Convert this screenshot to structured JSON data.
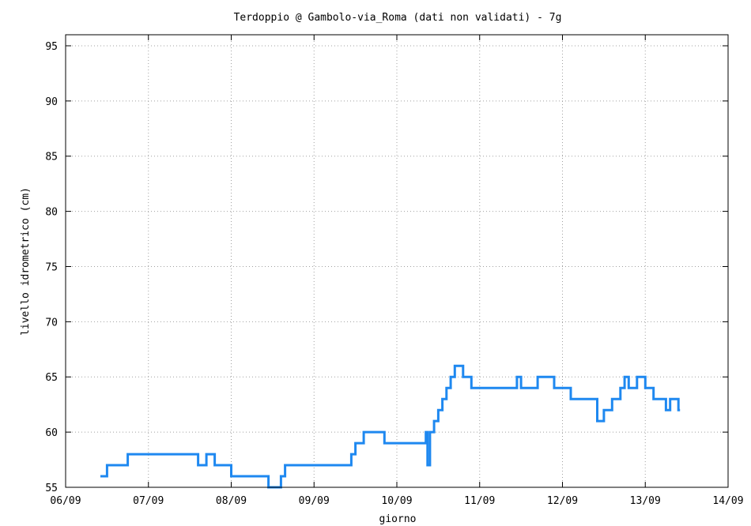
{
  "chart_data": {
    "type": "line",
    "title": "Terdoppio @ Gambolo-via_Roma (dati non validati) - 7g",
    "xlabel": "giorno",
    "ylabel": "livello idrometrico (cm)",
    "x_ticks": [
      "06/09",
      "07/09",
      "08/09",
      "09/09",
      "10/09",
      "11/09",
      "12/09",
      "13/09",
      "14/09"
    ],
    "xlim": [
      0,
      8
    ],
    "ylim": [
      55,
      96
    ],
    "y_ticks": [
      55,
      60,
      65,
      70,
      75,
      80,
      85,
      90,
      95
    ],
    "grid": true,
    "color": "#1e88f0",
    "series": [
      {
        "x_days": [
          0.42,
          0.48,
          0.5,
          0.55,
          0.6,
          0.7,
          0.75,
          0.8,
          0.9,
          1.0,
          1.1,
          1.2,
          1.3,
          1.4,
          1.5,
          1.6,
          1.7,
          1.8,
          1.9,
          2.0,
          2.05,
          2.1,
          2.15,
          2.2,
          2.3,
          2.4,
          2.45,
          2.5,
          2.55,
          2.6,
          2.65,
          2.7,
          2.8,
          2.9,
          3.0,
          3.05,
          3.1,
          3.2,
          3.3,
          3.4,
          3.45,
          3.5,
          3.55,
          3.6,
          3.65,
          3.7,
          3.75,
          3.8,
          3.85,
          3.9,
          4.0,
          4.1,
          4.2,
          4.3,
          4.35,
          4.37,
          4.4,
          4.45,
          4.5,
          4.55,
          4.6,
          4.65,
          4.7,
          4.8,
          4.9,
          5.0,
          5.1,
          5.2,
          5.3,
          5.4,
          5.45,
          5.5,
          5.6,
          5.7,
          5.8,
          5.9,
          6.0,
          6.1,
          6.2,
          6.3,
          6.4,
          6.42,
          6.5,
          6.55,
          6.6,
          6.7,
          6.75,
          6.8,
          6.85,
          6.9,
          7.0,
          7.05,
          7.1,
          7.2,
          7.25,
          7.3,
          7.4,
          7.42
        ],
        "values": [
          56,
          56,
          57,
          57,
          57,
          57,
          58,
          58,
          58,
          58,
          58,
          58,
          58,
          58,
          58,
          57,
          58,
          57,
          57,
          56,
          56,
          56,
          56,
          56,
          56,
          56,
          55,
          55,
          55,
          56,
          57,
          57,
          57,
          57,
          57,
          57,
          57,
          57,
          57,
          57,
          58,
          59,
          59,
          60,
          60,
          60,
          60,
          60,
          59,
          59,
          59,
          59,
          59,
          59,
          60,
          57,
          60,
          61,
          62,
          63,
          64,
          65,
          66,
          65,
          64,
          64,
          64,
          64,
          64,
          64,
          65,
          64,
          64,
          65,
          65,
          64,
          64,
          63,
          63,
          63,
          63,
          61,
          62,
          62,
          63,
          64,
          65,
          64,
          64,
          65,
          64,
          64,
          63,
          63,
          62,
          63,
          62,
          62
        ]
      }
    ]
  }
}
